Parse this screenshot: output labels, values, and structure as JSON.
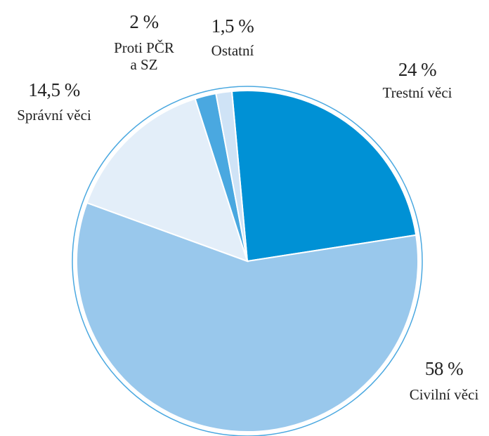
{
  "chart_data": {
    "type": "pie",
    "categories": [
      "Trestní věci",
      "Civilní věci",
      "Správní věci",
      "Proti PČR a SZ",
      "Ostatní"
    ],
    "values": [
      24,
      58,
      14.5,
      2,
      1.5
    ],
    "value_labels": [
      "24 %",
      "58 %",
      "14,5 %",
      "2 %",
      "1,5 %"
    ],
    "colors": [
      "#0091d5",
      "#99c8ec",
      "#e3eef9",
      "#4aa8e0",
      "#cfe3f6"
    ]
  }
}
